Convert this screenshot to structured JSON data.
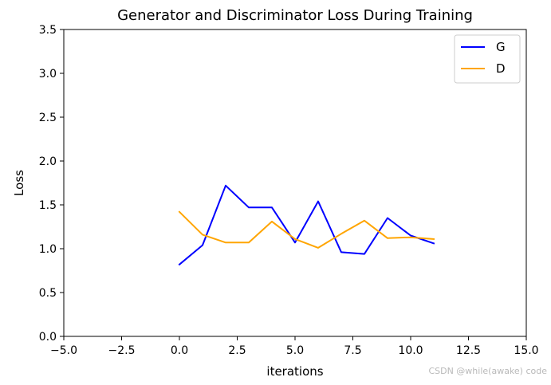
{
  "chart_data": {
    "type": "line",
    "title": "Generator and Discriminator Loss During Training",
    "xlabel": "iterations",
    "ylabel": "Loss",
    "xlim": [
      -5.0,
      15.0
    ],
    "ylim": [
      0.0,
      3.5
    ],
    "xticks": [
      -5.0,
      -2.5,
      0.0,
      2.5,
      5.0,
      7.5,
      10.0,
      12.5,
      15.0
    ],
    "xtick_labels": [
      "−5.0",
      "−2.5",
      "0.0",
      "2.5",
      "5.0",
      "7.5",
      "10.0",
      "12.5",
      "15.0"
    ],
    "yticks": [
      0.0,
      0.5,
      1.0,
      1.5,
      2.0,
      2.5,
      3.0,
      3.5
    ],
    "ytick_labels": [
      "0.0",
      "0.5",
      "1.0",
      "1.5",
      "2.0",
      "2.5",
      "3.0",
      "3.5"
    ],
    "grid": false,
    "legend_position": "top-right",
    "x": [
      0,
      1,
      2,
      3,
      4,
      5,
      6,
      7,
      8,
      9,
      10,
      11
    ],
    "series": [
      {
        "name": "G",
        "color": "#0000ff",
        "values": [
          0.82,
          1.04,
          1.72,
          1.47,
          1.47,
          1.07,
          1.54,
          0.96,
          0.94,
          1.35,
          1.15,
          1.06
        ]
      },
      {
        "name": "D",
        "color": "#ffa500",
        "values": [
          1.42,
          1.16,
          1.07,
          1.07,
          1.31,
          1.11,
          1.01,
          1.17,
          1.32,
          1.12,
          1.13,
          1.11
        ]
      }
    ]
  },
  "watermark": "CSDN @while(awake) code"
}
